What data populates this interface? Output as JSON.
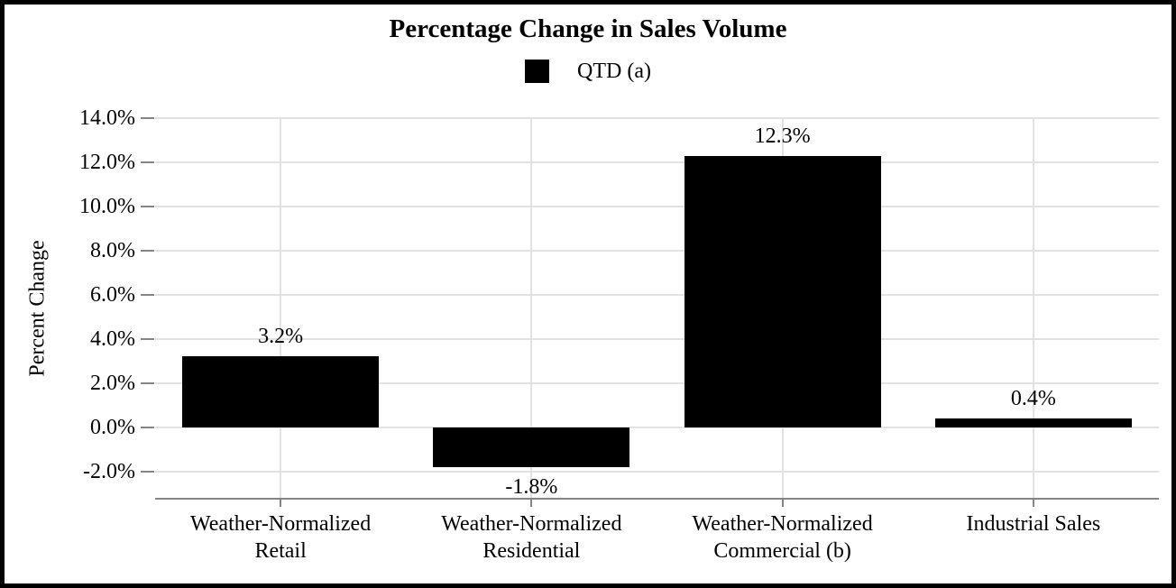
{
  "chart_data": {
    "type": "bar",
    "title": "Percentage Change in Sales Volume",
    "legend": {
      "label": "QTD (a)",
      "position": "top-center",
      "swatch_color": "#000000"
    },
    "ylabel": "Percent Change",
    "xlabel": "",
    "categories": [
      "Weather-Normalized\nRetail",
      "Weather-Normalized\nResidential",
      "Weather-Normalized\nCommercial (b)",
      "Industrial Sales"
    ],
    "series": [
      {
        "name": "QTD (a)",
        "values": [
          3.2,
          -1.8,
          12.3,
          0.4
        ]
      }
    ],
    "value_labels": [
      "3.2%",
      "-1.8%",
      "12.3%",
      "0.4%"
    ],
    "yticks": [
      14,
      12,
      10,
      8,
      6,
      4,
      2,
      0,
      -2
    ],
    "ytick_labels": [
      "14.0%",
      "12.0%",
      "10.0%",
      "8.0%",
      "6.0%",
      "4.0%",
      "2.0%",
      "0.0%",
      "-2.0%"
    ],
    "ylim": [
      -3.2,
      14
    ],
    "grid": {
      "horizontal": true,
      "vertical": true,
      "vertical_at": "category-centers"
    },
    "colors": {
      "bar": "#000000",
      "gridline": "#e2e2e2",
      "axis": "#858585",
      "text": "#000000",
      "background": "#ffffff",
      "frame": "#000000"
    }
  }
}
